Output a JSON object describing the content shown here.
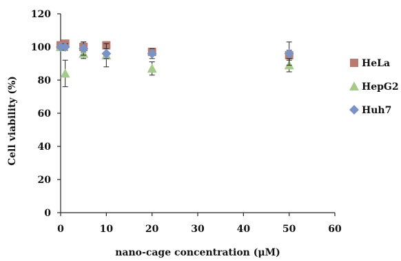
{
  "chart_data": {
    "type": "scatter",
    "title": "",
    "xlabel": "nano-cage concentration (μM)",
    "ylabel": "Cell viability (%)",
    "xlim": [
      0,
      60
    ],
    "ylim": [
      0,
      120
    ],
    "xticks": [
      0,
      10,
      20,
      30,
      40,
      50,
      60
    ],
    "yticks": [
      0,
      20,
      40,
      60,
      80,
      100,
      120
    ],
    "grid": false,
    "legend_position": "right",
    "series": [
      {
        "name": "HeLa",
        "marker": "square",
        "color": "#b97b70",
        "points": [
          {
            "x": 0,
            "y": 101,
            "err": 1
          },
          {
            "x": 1,
            "y": 102,
            "err": 2
          },
          {
            "x": 5,
            "y": 100,
            "err": 3
          },
          {
            "x": 10,
            "y": 101,
            "err": 2
          },
          {
            "x": 20,
            "y": 97,
            "err": 2
          },
          {
            "x": 50,
            "y": 95,
            "err": 3
          }
        ]
      },
      {
        "name": "HepG2",
        "marker": "triangle",
        "color": "#a4c98a",
        "points": [
          {
            "x": 0,
            "y": 100,
            "err": 1
          },
          {
            "x": 1,
            "y": 84,
            "err": 8
          },
          {
            "x": 5,
            "y": 96,
            "err": 3
          },
          {
            "x": 10,
            "y": 95,
            "err": 7
          },
          {
            "x": 20,
            "y": 87,
            "err": 4
          },
          {
            "x": 50,
            "y": 89,
            "err": 4
          }
        ]
      },
      {
        "name": "Huh7",
        "marker": "diamond",
        "color": "#7b93c4",
        "points": [
          {
            "x": 0,
            "y": 100,
            "err": 1
          },
          {
            "x": 1,
            "y": 100,
            "err": 2
          },
          {
            "x": 5,
            "y": 99,
            "err": 4
          },
          {
            "x": 10,
            "y": 96,
            "err": 3
          },
          {
            "x": 20,
            "y": 96,
            "err": 3
          },
          {
            "x": 50,
            "y": 96,
            "err": 7
          }
        ]
      }
    ]
  }
}
